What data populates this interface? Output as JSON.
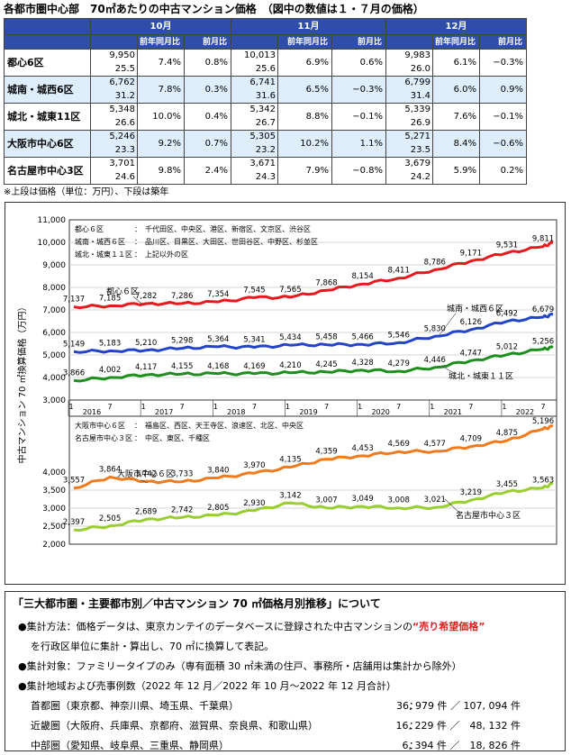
{
  "title": "各都市圏中心部　70㎡あたりの中古マンション価格　（図中の数値は１・７月の価格）",
  "table": {
    "months": [
      "10月",
      "11月",
      "12月"
    ],
    "sub_headers": [
      "前年同月比",
      "前月比"
    ],
    "rows": [
      {
        "area": "都心6区",
        "cells": [
          {
            "price": "9,950",
            "age": "25.5",
            "yoy": "7.4%",
            "mom": "0.8%"
          },
          {
            "price": "10,013",
            "age": "25.6",
            "yoy": "6.9%",
            "mom": "0.6%"
          },
          {
            "price": "9,983",
            "age": "26.0",
            "yoy": "6.1%",
            "mom": "−0.3%"
          }
        ]
      },
      {
        "area": "城南・城西6区",
        "cells": [
          {
            "price": "6,762",
            "age": "31.2",
            "yoy": "7.8%",
            "mom": "0.3%"
          },
          {
            "price": "6,741",
            "age": "31.6",
            "yoy": "6.5%",
            "mom": "−0.3%"
          },
          {
            "price": "6,799",
            "age": "31.4",
            "yoy": "6.0%",
            "mom": "0.9%"
          }
        ]
      },
      {
        "area": "城北・城東11区",
        "cells": [
          {
            "price": "5,348",
            "age": "26.6",
            "yoy": "10.0%",
            "mom": "0.4%"
          },
          {
            "price": "5,342",
            "age": "26.7",
            "yoy": "8.8%",
            "mom": "−0.1%"
          },
          {
            "price": "5,339",
            "age": "26.9",
            "yoy": "7.6%",
            "mom": "−0.1%"
          }
        ]
      },
      {
        "area": "大阪市中心6区",
        "cells": [
          {
            "price": "5,246",
            "age": "23.3",
            "yoy": "9.2%",
            "mom": "0.7%"
          },
          {
            "price": "5,305",
            "age": "23.2",
            "yoy": "10.2%",
            "mom": "1.1%"
          },
          {
            "price": "5,271",
            "age": "23.5",
            "yoy": "8.4%",
            "mom": "−0.6%"
          }
        ]
      },
      {
        "area": "名古屋市中心3区",
        "cells": [
          {
            "price": "3,701",
            "age": "24.6",
            "yoy": "9.8%",
            "mom": "2.4%"
          },
          {
            "price": "3,671",
            "age": "24.3",
            "yoy": "7.9%",
            "mom": "−0.8%"
          },
          {
            "price": "3,679",
            "age": "24.2",
            "yoy": "5.9%",
            "mom": "0.2%"
          }
        ]
      }
    ],
    "note": "※上段は価格（単位：万円）、下段は築年"
  },
  "chart_data": {
    "type": "line",
    "ylabel": "中古マンション 70 ㎡換算価格（万円）",
    "ylim": [
      2000,
      11000
    ],
    "yticks": [
      "11,000",
      "10,000",
      "9,000",
      "8,000",
      "7,000",
      "6,000",
      "5,000",
      "4,000",
      "3,000",
      "2,000"
    ],
    "x_month_labels": [
      "1",
      "7",
      "1",
      "7",
      "1",
      "7",
      "1",
      "7",
      "1",
      "7",
      "1",
      "7",
      "1",
      "7"
    ],
    "x_year_labels": [
      "2016",
      "2017",
      "2018",
      "2019",
      "2020",
      "2021",
      "2022"
    ],
    "legend_top": [
      {
        "name": "都心６区",
        "desc": "千代田区、中央区、港区、新宿区、文京区、渋谷区"
      },
      {
        "name": "城南・城西６区",
        "desc": "品川区、目黒区、大田区、世田谷区、中野区、杉並区"
      },
      {
        "name": "城北・城東１１区",
        "desc": "上記以外の区"
      }
    ],
    "legend_bottom": [
      {
        "name": "大阪市中心６区",
        "desc": "福島区、西区、天王寺区、浪速区、北区、中央区"
      },
      {
        "name": "名古屋市中心３区",
        "desc": "中区、東区、千種区"
      }
    ],
    "series": [
      {
        "name": "都心６区",
        "color": "#e8191e",
        "labels": [
          "7,137",
          "7,185",
          "7,282",
          "7,286",
          "7,354",
          "7,545",
          "7,565",
          "7,868",
          "8,154",
          "8,411",
          "8,786",
          "9,171",
          "9,531",
          "9,811"
        ],
        "values": [
          7137,
          7185,
          7282,
          7286,
          7354,
          7545,
          7565,
          7868,
          8154,
          8411,
          8786,
          9171,
          9531,
          9811
        ],
        "last": 9983
      },
      {
        "name": "城南・城西６区",
        "color": "#2343c8",
        "labels": [
          "5,149",
          "5,183",
          "5,210",
          "5,298",
          "5,364",
          "5,341",
          "5,434",
          "5,458",
          "5,466",
          "5,546",
          "5,830",
          "6,126",
          "6,492",
          "6,679"
        ],
        "values": [
          5149,
          5183,
          5210,
          5298,
          5364,
          5341,
          5434,
          5458,
          5466,
          5546,
          5830,
          6126,
          6492,
          6679
        ],
        "last": 6799
      },
      {
        "name": "城北・城東１１区",
        "color": "#1e8f1e",
        "labels": [
          "3,866",
          "4,002",
          "4,117",
          "4,155",
          "4,168",
          "4,169",
          "4,210",
          "4,245",
          "4,328",
          "4,279",
          "4,446",
          "4,747",
          "5,012",
          "5,256"
        ],
        "values": [
          3866,
          4002,
          4117,
          4155,
          4168,
          4169,
          4210,
          4245,
          4328,
          4279,
          4446,
          4747,
          5012,
          5256
        ],
        "last": 5339
      },
      {
        "name": "大阪市中心６区",
        "color": "#f07a1c",
        "labels": [
          "3,557",
          "3,864",
          "3,742",
          "3,733",
          "3,840",
          "3,970",
          "4,135",
          "4,359",
          "4,453",
          "4,569",
          "4,577",
          "4,709",
          "4,875",
          "5,196"
        ],
        "values": [
          3557,
          3864,
          3742,
          3733,
          3840,
          3970,
          4135,
          4359,
          4453,
          4569,
          4577,
          4709,
          4875,
          5196
        ],
        "last": 5271
      },
      {
        "name": "名古屋市中心３区",
        "color": "#9acd32",
        "labels": [
          "2,397",
          "2,505",
          "2,689",
          "2,742",
          "2,805",
          "2,930",
          "3,142",
          "3,007",
          "3,049",
          "3,008",
          "3,021",
          "3,219",
          "3,455",
          "3,563"
        ],
        "values": [
          2397,
          2505,
          2689,
          2742,
          2805,
          2930,
          3142,
          3007,
          3049,
          3008,
          3021,
          3219,
          3455,
          3563
        ],
        "last": 3679
      }
    ],
    "callouts": [
      "都心６区",
      "城南・城西６区",
      "城北・城東１１区",
      "大阪市中心６区",
      "名古屋市中心３区"
    ]
  },
  "info": {
    "heading": "「三大都市圏・主要都市別／中古マンション 70 ㎡価格月別推移」について",
    "method_label": "●集計方法：価格データは、東京カンテイのデータベースに登録された中古マンションの",
    "method_emph": "“売り希望価格”",
    "method_cont": "を行政区単位に集計・算出し、70 ㎡に換算して表記。",
    "target": "●集計対象：ファミリータイプのみ（専有面積 30 ㎡未満の住戸、事務所・店舗用は集計から除外）",
    "areas_heading": "●集計地域および売事例数（2022 年 12 月／2022 年 10 月～2022 年 12 月合計）",
    "regions": [
      {
        "name": "首都圏（東京都、神奈川県、埼玉県、千葉県）",
        "count": "36, 979 件 ／ 107, 094 件"
      },
      {
        "name": "近畿圏（大阪府、兵庫県、京都府、滋賀県、奈良県、和歌山県）",
        "count": "16, 229 件 ／　48, 132 件"
      },
      {
        "name": "中部圏（愛知県、岐阜県、三重県、静岡県）",
        "count": "6, 394 件 ／　18, 826 件"
      }
    ]
  }
}
